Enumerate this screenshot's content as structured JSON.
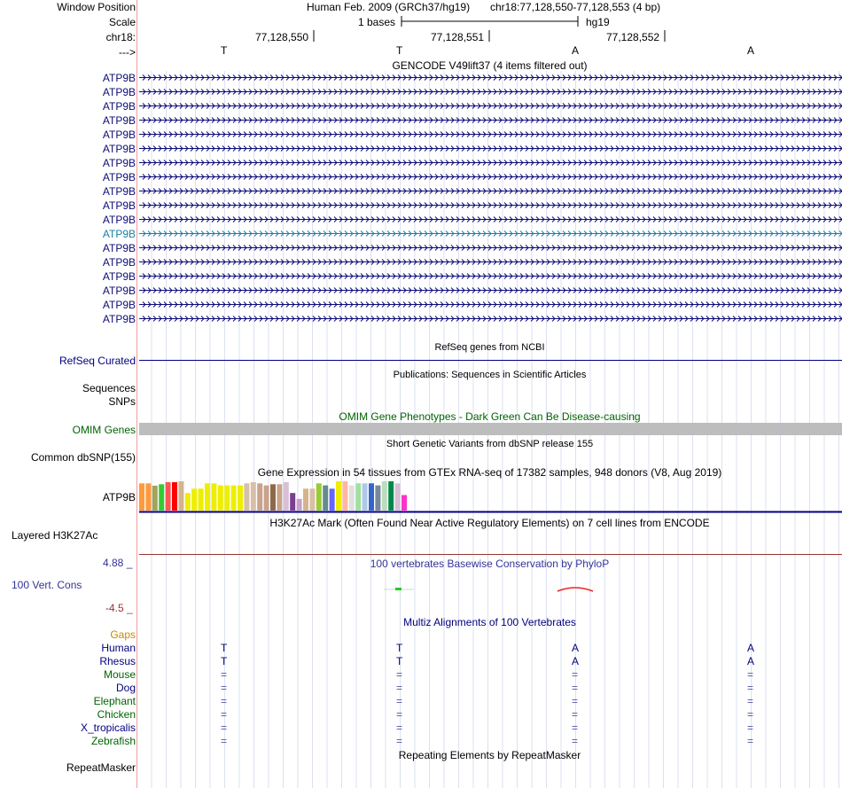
{
  "header": {
    "window_position_label": "Window Position",
    "scale_label": "Scale",
    "chrom_label": "chr18:",
    "strand_label": "--->",
    "assembly": "Human Feb. 2009 (GRCh37/hg19)",
    "position": "chr18:77,128,550-77,128,553 (4 bp)",
    "scale_text": "1 bases",
    "db": "hg19",
    "coords": [
      "77,128,550",
      "77,128,551",
      "77,128,552"
    ],
    "bases": [
      "T",
      "T",
      "A",
      "A"
    ]
  },
  "gencode": {
    "title": "GENCODE V49lift37 (4 items filtered out)",
    "items": [
      "ATP9B",
      "ATP9B",
      "ATP9B",
      "ATP9B",
      "ATP9B",
      "ATP9B",
      "ATP9B",
      "ATP9B",
      "ATP9B",
      "ATP9B",
      "ATP9B",
      "ATP9B",
      "ATP9B",
      "ATP9B",
      "ATP9B",
      "ATP9B",
      "ATP9B",
      "ATP9B"
    ],
    "highlight_index": 11,
    "color": "#0c0c78",
    "highlight_color": "#1a7fa8"
  },
  "refseq": {
    "title": "RefSeq genes from NCBI",
    "label": "RefSeq Curated"
  },
  "publications": {
    "title": "Publications: Sequences in Scientific Articles",
    "labels": [
      "Sequences",
      "SNPs"
    ]
  },
  "omim": {
    "title": "OMIM Gene Phenotypes - Dark Green Can Be Disease-causing",
    "label": "OMIM Genes",
    "color": "#006400"
  },
  "dbsnp": {
    "title": "Short Genetic Variants from dbSNP release 155",
    "label": "Common dbSNP(155)"
  },
  "gtex": {
    "title": "Gene Expression in 54 tissues from GTEx RNA-seq of 17382 samples, 948 donors (V8, Aug 2019)",
    "label": "ATP9B",
    "bars": [
      {
        "c": "#ff9a3c",
        "v": 0.93
      },
      {
        "c": "#ff9a3c",
        "v": 0.93
      },
      {
        "c": "#a3a35a",
        "v": 0.85
      },
      {
        "c": "#33cc33",
        "v": 0.9
      },
      {
        "c": "#ff5555",
        "v": 0.97
      },
      {
        "c": "#ff0000",
        "v": 0.97
      },
      {
        "c": "#d4b48c",
        "v": 1.0
      },
      {
        "c": "#eeee00",
        "v": 0.6
      },
      {
        "c": "#eeee00",
        "v": 0.75
      },
      {
        "c": "#eeee00",
        "v": 0.75
      },
      {
        "c": "#eeee00",
        "v": 0.93
      },
      {
        "c": "#eeee00",
        "v": 0.93
      },
      {
        "c": "#eeee00",
        "v": 0.86
      },
      {
        "c": "#eeee00",
        "v": 0.86
      },
      {
        "c": "#eeee00",
        "v": 0.86
      },
      {
        "c": "#eeee00",
        "v": 0.86
      },
      {
        "c": "#d8bfa8",
        "v": 0.93
      },
      {
        "c": "#d8bfa8",
        "v": 0.97
      },
      {
        "c": "#c9a38b",
        "v": 0.93
      },
      {
        "c": "#c9a38b",
        "v": 0.86
      },
      {
        "c": "#8b6a4a",
        "v": 0.9
      },
      {
        "c": "#c9a38b",
        "v": 0.9
      },
      {
        "c": "#d8bfd8",
        "v": 0.97
      },
      {
        "c": "#7a3e8e",
        "v": 0.6
      },
      {
        "c": "#c9a0c9",
        "v": 0.4
      },
      {
        "c": "#d4b48c",
        "v": 0.75
      },
      {
        "c": "#d8bfa8",
        "v": 0.75
      },
      {
        "c": "#99cc33",
        "v": 0.93
      },
      {
        "c": "#668b8b",
        "v": 0.86
      },
      {
        "c": "#6666ff",
        "v": 0.75
      },
      {
        "c": "#eeee00",
        "v": 1.0
      },
      {
        "c": "#ffb6a0",
        "v": 1.0
      },
      {
        "c": "#e0e0e0",
        "v": 0.86
      },
      {
        "c": "#a0e0a0",
        "v": 0.93
      },
      {
        "c": "#b0c8e8",
        "v": 0.93
      },
      {
        "c": "#3366cc",
        "v": 0.93
      },
      {
        "c": "#778899",
        "v": 0.86
      },
      {
        "c": "#bbddbb",
        "v": 1.0
      },
      {
        "c": "#00884a",
        "v": 1.0
      },
      {
        "c": "#d8bfd8",
        "v": 0.93
      },
      {
        "c": "#ff33cc",
        "v": 0.53
      }
    ]
  },
  "h3k27ac": {
    "title": "H3K27Ac Mark (Often Found Near Active Regulatory Elements) on 7 cell lines from ENCODE",
    "label": "Layered H3K27Ac"
  },
  "phylop": {
    "title": "100 vertebrates Basewise Conservation by PhyloP",
    "label": "100 Vert. Cons",
    "max": "4.88 _",
    "min": "-4.5 _"
  },
  "multiz": {
    "title": "Multiz Alignments of 100 Vertebrates",
    "gaps_label": "Gaps",
    "species": [
      {
        "name": "Human",
        "color": "#000080",
        "row": [
          "T",
          "T",
          "A",
          "A"
        ]
      },
      {
        "name": "Rhesus",
        "color": "#000080",
        "row": [
          "T",
          "T",
          "A",
          "A"
        ]
      },
      {
        "name": "Mouse",
        "color": "#006400",
        "row": [
          "=",
          "=",
          "=",
          "="
        ]
      },
      {
        "name": "Dog",
        "color": "#000080",
        "row": [
          "=",
          "=",
          "=",
          "="
        ]
      },
      {
        "name": "Elephant",
        "color": "#006400",
        "row": [
          "=",
          "=",
          "=",
          "="
        ]
      },
      {
        "name": "Chicken",
        "color": "#006400",
        "row": [
          "=",
          "=",
          "=",
          "="
        ]
      },
      {
        "name": "X_tropicalis",
        "color": "#000080",
        "row": [
          "=",
          "=",
          "=",
          "="
        ]
      },
      {
        "name": "Zebrafish",
        "color": "#006400",
        "row": [
          "=",
          "=",
          "=",
          "="
        ]
      }
    ]
  },
  "repeatmasker": {
    "title": "Repeating Elements by RepeatMasker",
    "label": "RepeatMasker"
  },
  "colors": {
    "label_bar": "#cc3333",
    "grid": "#dde0f0",
    "navy": "#000080",
    "phylop_max": "#333399",
    "phylop_min": "#993333",
    "gaps": "#cc8800",
    "eq": "#5555aa"
  }
}
